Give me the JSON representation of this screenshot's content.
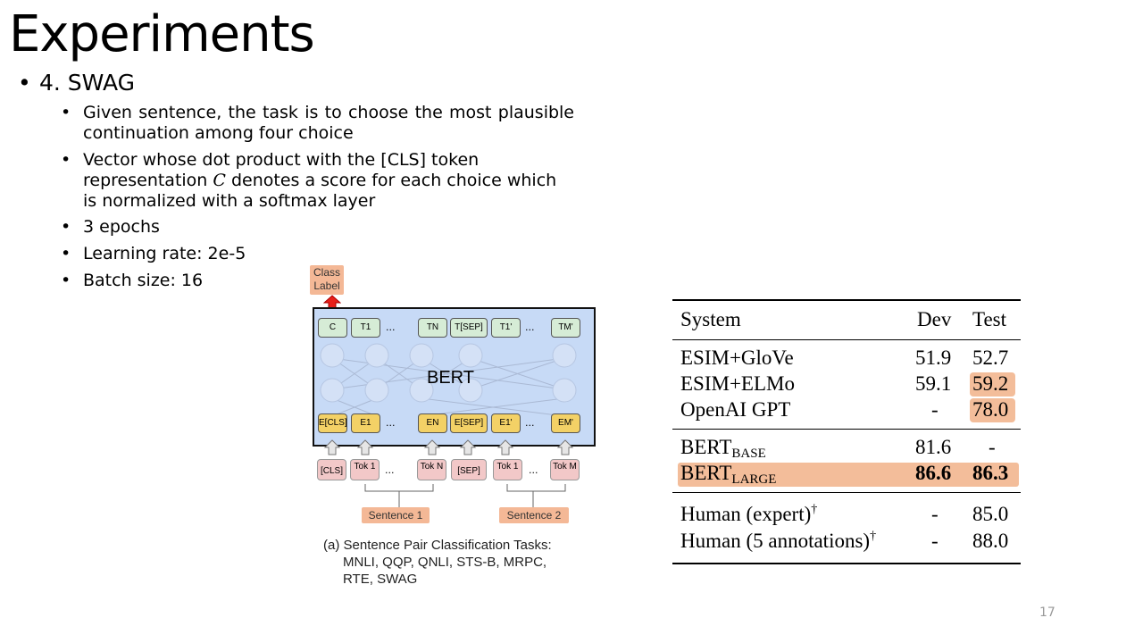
{
  "slide": {
    "title": "Experiments",
    "main_bullet": "4. SWAG",
    "sub_bullets": [
      "Given sentence, the task is to choose the most plausible continuation among four choice",
      "Vector whose dot product with the [CLS] token",
      "3 epochs",
      "Learning rate: 2e-5",
      "Batch size: 16"
    ],
    "vector_line2_a": "representation ",
    "vector_symbol": "C",
    "vector_line2_b": " denotes a score for each choice which is normalized with a softmax layer",
    "page_number": "17"
  },
  "diagram": {
    "class_label": "Class Label",
    "model": "BERT",
    "outputs": [
      "C",
      "T1",
      "...",
      "TN",
      "T[SEP]",
      "T1'",
      "...",
      "TM'"
    ],
    "embeddings": [
      "E[CLS]",
      "E1",
      "...",
      "EN",
      "E[SEP]",
      "E1'",
      "...",
      "EM'"
    ],
    "inputs": [
      "[CLS]",
      "Tok 1",
      "...",
      "Tok N",
      "[SEP]",
      "Tok 1",
      "...",
      "Tok M"
    ],
    "sentence1": "Sentence 1",
    "sentence2": "Sentence 2",
    "caption_line1": "(a) Sentence Pair Classification Tasks:",
    "caption_line2": "MNLI, QQP, QNLI, STS-B, MRPC,",
    "caption_line3": "RTE, SWAG",
    "highlight_color": "#f4b896",
    "bert_color": "#c7daf6"
  },
  "table": {
    "headers": [
      "System",
      "Dev",
      "Test"
    ],
    "rows": [
      {
        "system": "ESIM+GloVe",
        "dev": "51.9",
        "test": "52.7"
      },
      {
        "system": "ESIM+ELMo",
        "dev": "59.1",
        "test": "59.2"
      },
      {
        "system": "OpenAI GPT",
        "dev": "-",
        "test": "78.0"
      },
      {
        "system": "BERT",
        "sub": "BASE",
        "dev": "81.6",
        "test": "-"
      },
      {
        "system": "BERT",
        "sub": "LARGE",
        "dev": "86.6",
        "test": "86.3"
      },
      {
        "system": "Human (expert)",
        "sup": "†",
        "dev": "-",
        "test": "85.0"
      },
      {
        "system": "Human (5 annotations)",
        "sup": "†",
        "dev": "-",
        "test": "88.0"
      }
    ],
    "highlight_color": "#f3bd9a"
  }
}
